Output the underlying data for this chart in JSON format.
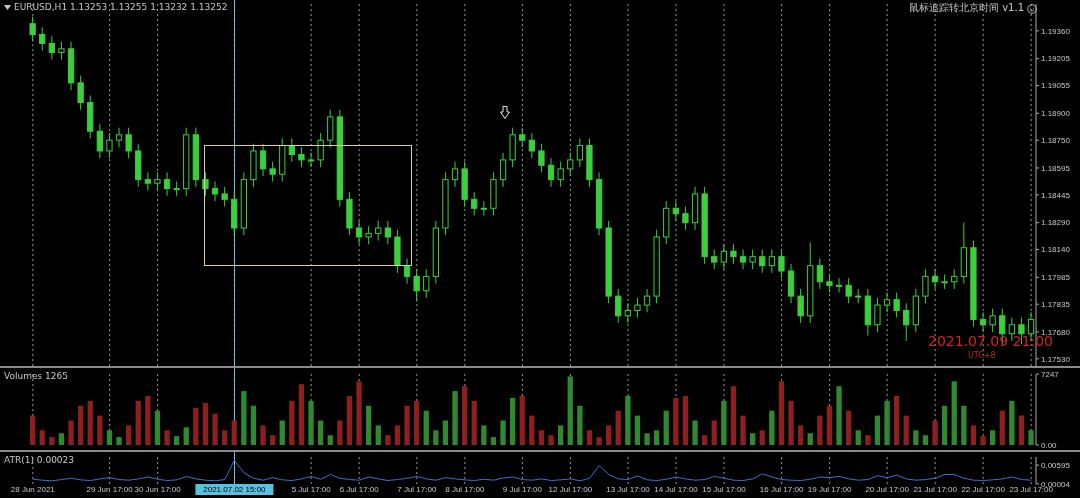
{
  "chart_data": [
    {
      "type": "candlestick",
      "title": "EURUSD,H1  1.13253 1.13255 1.13232 1.13252",
      "color": "#3ccf3c",
      "grid": "x",
      "tick_labels": "y",
      "annotations": [
        "鼠标追踪转北京时间 v1.1",
        "2021.07.09 21:00",
        "UTC+8"
      ],
      "categories": [
        "28 Jun 2021",
        null,
        null,
        null,
        null,
        null,
        null,
        null,
        "29 Jun 17:00",
        null,
        null,
        null,
        null,
        "30 Jun 17:00",
        null,
        null,
        null,
        null,
        null,
        null,
        null,
        "2021.07.02 15:00",
        null,
        null,
        null,
        null,
        null,
        null,
        null,
        "5 Jul 17:00",
        null,
        null,
        null,
        null,
        "6 Jul 17:00",
        null,
        null,
        null,
        null,
        null,
        "7 Jul 17:00",
        null,
        null,
        null,
        null,
        "8 Jul 17:00",
        null,
        null,
        null,
        null,
        null,
        "9 Jul 17:00",
        null,
        null,
        null,
        null,
        "12 Jul 17:00",
        null,
        null,
        null,
        null,
        null,
        "13 Jul 17:00",
        null,
        null,
        null,
        null,
        "14 Jul 17:00",
        null,
        null,
        null,
        null,
        "15 Jul 17:00",
        null,
        null,
        null,
        null,
        null,
        "16 Jul 17:00",
        null,
        null,
        null,
        null,
        "19 Jul 17:00",
        null,
        null,
        null,
        null,
        null,
        "20 Jul 17:00",
        null,
        null,
        null,
        null,
        "21 Jul 17:00",
        null,
        null,
        null,
        null,
        "22 Jul 17:00",
        null,
        null,
        null,
        null,
        "23 Jul 17:00"
      ],
      "ohlc": [
        [
          1.194,
          1.1944,
          1.193,
          1.1934
        ],
        [
          1.1934,
          1.1938,
          1.1925,
          1.1929
        ],
        [
          1.1929,
          1.1933,
          1.192,
          1.1924
        ],
        [
          1.1924,
          1.193,
          1.192,
          1.1926
        ],
        [
          1.1926,
          1.193,
          1.1903,
          1.1907
        ],
        [
          1.1907,
          1.1911,
          1.1892,
          1.1896
        ],
        [
          1.1896,
          1.19,
          1.1876,
          1.188
        ],
        [
          1.188,
          1.1884,
          1.1865,
          1.1869
        ],
        [
          1.1869,
          1.1879,
          1.1865,
          1.1875
        ],
        [
          1.1875,
          1.1882,
          1.1871,
          1.1878
        ],
        [
          1.1878,
          1.1882,
          1.1865,
          1.1869
        ],
        [
          1.1869,
          1.1873,
          1.1849,
          1.1853
        ],
        [
          1.1853,
          1.1857,
          1.1847,
          1.1851
        ],
        [
          1.1851,
          1.1857,
          1.1847,
          1.1853
        ],
        [
          1.1853,
          1.1857,
          1.1844,
          1.1848
        ],
        [
          1.1848,
          1.1852,
          1.1844,
          1.1848
        ],
        [
          1.1848,
          1.1882,
          1.1844,
          1.1878
        ],
        [
          1.1878,
          1.1882,
          1.1849,
          1.1853
        ],
        [
          1.1853,
          1.1857,
          1.1844,
          1.1848
        ],
        [
          1.1848,
          1.1852,
          1.1841,
          1.1845
        ],
        [
          1.1845,
          1.1849,
          1.1838,
          1.1842
        ],
        [
          1.1842,
          1.1846,
          1.1822,
          1.1826
        ],
        [
          1.1826,
          1.1857,
          1.1822,
          1.1853
        ],
        [
          1.1853,
          1.1873,
          1.1849,
          1.1869
        ],
        [
          1.1869,
          1.1873,
          1.1855,
          1.1859
        ],
        [
          1.1859,
          1.1863,
          1.1852,
          1.1856
        ],
        [
          1.1856,
          1.1876,
          1.1852,
          1.1872
        ],
        [
          1.1872,
          1.1876,
          1.1863,
          1.1867
        ],
        [
          1.1867,
          1.1871,
          1.186,
          1.1864
        ],
        [
          1.1864,
          1.1868,
          1.186,
          1.1864
        ],
        [
          1.1864,
          1.1879,
          1.186,
          1.1875
        ],
        [
          1.1875,
          1.1892,
          1.1871,
          1.1888
        ],
        [
          1.1888,
          1.1892,
          1.1838,
          1.1842
        ],
        [
          1.1842,
          1.1846,
          1.1822,
          1.1826
        ],
        [
          1.1826,
          1.183,
          1.1817,
          1.1821
        ],
        [
          1.1821,
          1.1827,
          1.1817,
          1.1823
        ],
        [
          1.1823,
          1.183,
          1.1819,
          1.1826
        ],
        [
          1.1826,
          1.183,
          1.1817,
          1.1821
        ],
        [
          1.1821,
          1.1825,
          1.1801,
          1.1805
        ],
        [
          1.1805,
          1.1809,
          1.1795,
          1.1799
        ],
        [
          1.1799,
          1.1803,
          1.1785,
          1.1791
        ],
        [
          1.1791,
          1.1803,
          1.1787,
          1.1799
        ],
        [
          1.1799,
          1.183,
          1.1795,
          1.1826
        ],
        [
          1.1826,
          1.1857,
          1.1822,
          1.1853
        ],
        [
          1.1853,
          1.1863,
          1.1849,
          1.1859
        ],
        [
          1.1859,
          1.1863,
          1.1838,
          1.1842
        ],
        [
          1.1842,
          1.1846,
          1.1833,
          1.1837
        ],
        [
          1.1837,
          1.1841,
          1.1833,
          1.1837
        ],
        [
          1.1837,
          1.1857,
          1.1833,
          1.1853
        ],
        [
          1.1853,
          1.1868,
          1.1849,
          1.1864
        ],
        [
          1.1864,
          1.1882,
          1.186,
          1.1878
        ],
        [
          1.1878,
          1.1882,
          1.1871,
          1.1875
        ],
        [
          1.1875,
          1.1879,
          1.1865,
          1.1869
        ],
        [
          1.1869,
          1.1873,
          1.1857,
          1.1861
        ],
        [
          1.1861,
          1.1865,
          1.1849,
          1.1853
        ],
        [
          1.1853,
          1.1863,
          1.1849,
          1.1859
        ],
        [
          1.1859,
          1.1868,
          1.1855,
          1.1864
        ],
        [
          1.1864,
          1.1876,
          1.186,
          1.1872
        ],
        [
          1.1872,
          1.1876,
          1.1849,
          1.1853
        ],
        [
          1.1853,
          1.1857,
          1.1822,
          1.1826
        ],
        [
          1.1826,
          1.183,
          1.1784,
          1.1788
        ],
        [
          1.1788,
          1.1792,
          1.1773,
          1.1777
        ],
        [
          1.1777,
          1.1784,
          1.1773,
          1.178
        ],
        [
          1.178,
          1.1787,
          1.1776,
          1.1783
        ],
        [
          1.1783,
          1.1792,
          1.1779,
          1.1788
        ],
        [
          1.1788,
          1.1825,
          1.1784,
          1.1821
        ],
        [
          1.1821,
          1.1841,
          1.1817,
          1.1837
        ],
        [
          1.1837,
          1.1841,
          1.183,
          1.1834
        ],
        [
          1.1834,
          1.1838,
          1.1825,
          1.1829
        ],
        [
          1.1829,
          1.1849,
          1.1825,
          1.1845
        ],
        [
          1.1845,
          1.1849,
          1.1806,
          1.181
        ],
        [
          1.181,
          1.1814,
          1.1803,
          1.1807
        ],
        [
          1.1807,
          1.1817,
          1.1803,
          1.1813
        ],
        [
          1.1813,
          1.1817,
          1.1806,
          1.181
        ],
        [
          1.181,
          1.1814,
          1.1803,
          1.1807
        ],
        [
          1.1807,
          1.1814,
          1.1803,
          1.181
        ],
        [
          1.181,
          1.1814,
          1.1801,
          1.1805
        ],
        [
          1.1805,
          1.1814,
          1.1801,
          1.181
        ],
        [
          1.181,
          1.1814,
          1.1798,
          1.1802
        ],
        [
          1.1802,
          1.1806,
          1.1784,
          1.1788
        ],
        [
          1.1788,
          1.1792,
          1.1773,
          1.1777
        ],
        [
          1.1777,
          1.1818,
          1.1773,
          1.1805
        ],
        [
          1.1805,
          1.1809,
          1.1792,
          1.1796
        ],
        [
          1.1796,
          1.18,
          1.179,
          1.1794
        ],
        [
          1.1794,
          1.1798,
          1.179,
          1.1794
        ],
        [
          1.1794,
          1.1798,
          1.1784,
          1.1788
        ],
        [
          1.1788,
          1.1792,
          1.1784,
          1.1788
        ],
        [
          1.1788,
          1.1792,
          1.1766,
          1.1772
        ],
        [
          1.1772,
          1.1787,
          1.1768,
          1.1783
        ],
        [
          1.1783,
          1.179,
          1.1779,
          1.1786
        ],
        [
          1.1786,
          1.179,
          1.1776,
          1.178
        ],
        [
          1.178,
          1.1784,
          1.1763,
          1.1772
        ],
        [
          1.1772,
          1.1792,
          1.1768,
          1.1788
        ],
        [
          1.1788,
          1.1803,
          1.1784,
          1.1799
        ],
        [
          1.1799,
          1.1803,
          1.1792,
          1.1796
        ],
        [
          1.1796,
          1.18,
          1.1792,
          1.1796
        ],
        [
          1.1796,
          1.1803,
          1.1792,
          1.1799
        ],
        [
          1.1799,
          1.1829,
          1.1795,
          1.1815
        ],
        [
          1.1815,
          1.1819,
          1.1771,
          1.1775
        ],
        [
          1.1775,
          1.1779,
          1.1768,
          1.1772
        ],
        [
          1.1772,
          1.1781,
          1.1768,
          1.1777
        ],
        [
          1.1777,
          1.1781,
          1.1761,
          1.1767
        ],
        [
          1.1767,
          1.1776,
          1.1763,
          1.1772
        ],
        [
          1.1772,
          1.1776,
          1.1761,
          1.1767
        ],
        [
          1.1767,
          1.1779,
          1.1763,
          1.1775
        ]
      ],
      "ylim": [
        1.1749,
        1.1951
      ],
      "yticks": [
        {
          "value": 1.1936,
          "label": "1.19360"
        },
        1.19205,
        1.19055,
        {
          "value": 1.189,
          "label": "1.18900"
        },
        {
          "value": 1.1875,
          "label": "1.18750"
        },
        1.18595,
        1.18445,
        {
          "value": 1.1829,
          "label": "1.18290"
        },
        {
          "value": 1.1814,
          "label": "1.18140"
        },
        1.17985,
        1.17835,
        {
          "value": 1.1768,
          "label": "1.17680"
        },
        {
          "value": 1.1753,
          "label": "1.17530"
        }
      ],
      "ref_lines": [
        {
          "axis": "x",
          "value": "2021.07.02 15:00",
          "color": "#5bc0de"
        }
      ]
    },
    {
      "type": "bar",
      "title": "Volumes 1265",
      "grid": "x",
      "tick_labels": "y",
      "categories": [
        "28 Jun 2021",
        null,
        null,
        null,
        null,
        null,
        null,
        null,
        "29 Jun 17:00",
        null,
        null,
        null,
        null,
        "30 Jun 17:00",
        null,
        null,
        null,
        null,
        null,
        null,
        null,
        "2021.07.02 15:00",
        null,
        null,
        null,
        null,
        null,
        null,
        null,
        "5 Jul 17:00",
        null,
        null,
        null,
        null,
        "6 Jul 17:00",
        null,
        null,
        null,
        null,
        null,
        "7 Jul 17:00",
        null,
        null,
        null,
        null,
        "8 Jul 17:00",
        null,
        null,
        null,
        null,
        null,
        "9 Jul 17:00",
        null,
        null,
        null,
        null,
        "12 Jul 17:00",
        null,
        null,
        null,
        null,
        null,
        "13 Jul 17:00",
        null,
        null,
        null,
        null,
        "14 Jul 17:00",
        null,
        null,
        null,
        null,
        "15 Jul 17:00",
        null,
        null,
        null,
        null,
        null,
        "16 Jul 17:00",
        null,
        null,
        null,
        null,
        "19 Jul 17:00",
        null,
        null,
        null,
        null,
        null,
        "20 Jul 17:00",
        null,
        null,
        null,
        null,
        "21 Jul 17:00",
        null,
        null,
        null,
        null,
        "22 Jul 17:00",
        null,
        null,
        null,
        null,
        "23 Jul 17:00"
      ],
      "values": [
        3000,
        1500,
        800,
        1200,
        2500,
        4000,
        4500,
        3000,
        1500,
        800,
        2000,
        4500,
        5000,
        3500,
        1500,
        900,
        1800,
        3800,
        4300,
        3200,
        1500,
        2500,
        5500,
        4000,
        2000,
        1000,
        2500,
        4500,
        6200,
        4500,
        2500,
        1000,
        2500,
        5000,
        6500,
        4000,
        2000,
        1000,
        2000,
        4000,
        4500,
        3500,
        1500,
        2500,
        5500,
        6000,
        4500,
        2000,
        800,
        2500,
        4800,
        5000,
        3000,
        1500,
        1000,
        2000,
        7000,
        4000,
        1500,
        800,
        2000,
        3500,
        5000,
        3000,
        1200,
        1500,
        3500,
        4800,
        5000,
        2500,
        1000,
        2500,
        4500,
        6000,
        3000,
        1200,
        1500,
        3500,
        6500,
        4500,
        2000,
        1200,
        3000,
        4000,
        6000,
        3500,
        1500,
        1000,
        3000,
        4500,
        5000,
        3000,
        1500,
        1000,
        2500,
        4000,
        6500,
        4000,
        2000,
        900,
        1500,
        3500,
        4500,
        3000,
        1500
      ],
      "colors": [
        "#8e1f1f",
        "#8e1f1f",
        "#8e1f1f",
        "#2f8a2f",
        "#8e1f1f",
        "#8e1f1f",
        "#8e1f1f",
        "#8e1f1f",
        "#2f8a2f",
        "#2f8a2f",
        "#8e1f1f",
        "#8e1f1f",
        "#8e1f1f",
        "#2f8a2f",
        "#8e1f1f",
        "#2f8a2f",
        "#2f8a2f",
        "#8e1f1f",
        "#8e1f1f",
        "#8e1f1f",
        "#8e1f1f",
        "#8e1f1f",
        "#2f8a2f",
        "#2f8a2f",
        "#8e1f1f",
        "#8e1f1f",
        "#2f8a2f",
        "#8e1f1f",
        "#8e1f1f",
        "#2f8a2f",
        "#2f8a2f",
        "#2f8a2f",
        "#8e1f1f",
        "#8e1f1f",
        "#8e1f1f",
        "#2f8a2f",
        "#2f8a2f",
        "#8e1f1f",
        "#8e1f1f",
        "#8e1f1f",
        "#8e1f1f",
        "#2f8a2f",
        "#2f8a2f",
        "#2f8a2f",
        "#2f8a2f",
        "#8e1f1f",
        "#8e1f1f",
        "#2f8a2f",
        "#2f8a2f",
        "#2f8a2f",
        "#2f8a2f",
        "#8e1f1f",
        "#8e1f1f",
        "#8e1f1f",
        "#8e1f1f",
        "#2f8a2f",
        "#2f8a2f",
        "#2f8a2f",
        "#8e1f1f",
        "#8e1f1f",
        "#8e1f1f",
        "#8e1f1f",
        "#2f8a2f",
        "#2f8a2f",
        "#2f8a2f",
        "#2f8a2f",
        "#2f8a2f",
        "#8e1f1f",
        "#8e1f1f",
        "#2f8a2f",
        "#8e1f1f",
        "#8e1f1f",
        "#2f8a2f",
        "#8e1f1f",
        "#8e1f1f",
        "#2f8a2f",
        "#8e1f1f",
        "#2f8a2f",
        "#8e1f1f",
        "#8e1f1f",
        "#8e1f1f",
        "#2f8a2f",
        "#8e1f1f",
        "#8e1f1f",
        "#2f8a2f",
        "#8e1f1f",
        "#2f8a2f",
        "#8e1f1f",
        "#2f8a2f",
        "#2f8a2f",
        "#8e1f1f",
        "#8e1f1f",
        "#2f8a2f",
        "#2f8a2f",
        "#8e1f1f",
        "#2f8a2f",
        "#2f8a2f",
        "#2f8a2f",
        "#8e1f1f",
        "#8e1f1f",
        "#2f8a2f",
        "#8e1f1f",
        "#2f8a2f",
        "#8e1f1f",
        "#2f8a2f"
      ],
      "ylim": [
        0,
        7247
      ],
      "yticks": [
        {
          "value": 0,
          "label": "0.00"
        },
        7247
      ],
      "ref_lines": [
        {
          "axis": "x",
          "value": "2021.07.02 15:00",
          "color": "#5bc0de"
        }
      ]
    },
    {
      "type": "line",
      "title": "ATR(1) 0.00023",
      "grid": "x",
      "color": "#3e6fd1",
      "categories": [
        "28 Jun 2021",
        null,
        null,
        null,
        null,
        null,
        null,
        null,
        "29 Jun 17:00",
        null,
        null,
        null,
        null,
        "30 Jun 17:00",
        null,
        null,
        null,
        null,
        null,
        null,
        null,
        "2021.07.02 15:00",
        null,
        null,
        null,
        null,
        null,
        null,
        null,
        "5 Jul 17:00",
        null,
        null,
        null,
        null,
        "6 Jul 17:00",
        null,
        null,
        null,
        null,
        null,
        "7 Jul 17:00",
        null,
        null,
        null,
        null,
        "8 Jul 17:00",
        null,
        null,
        null,
        null,
        null,
        "9 Jul 17:00",
        null,
        null,
        null,
        null,
        "12 Jul 17:00",
        null,
        null,
        null,
        null,
        null,
        "13 Jul 17:00",
        null,
        null,
        null,
        null,
        "14 Jul 17:00",
        null,
        null,
        null,
        null,
        "15 Jul 17:00",
        null,
        null,
        null,
        null,
        null,
        "16 Jul 17:00",
        null,
        null,
        null,
        null,
        "19 Jul 17:00",
        null,
        null,
        null,
        null,
        null,
        "20 Jul 17:00",
        null,
        null,
        null,
        null,
        "21 Jul 17:00",
        null,
        null,
        null,
        null,
        "22 Jul 17:00",
        null,
        null,
        null,
        null,
        "23 Jul 17:00"
      ],
      "values": [
        0.0015,
        0.0012,
        0.001,
        0.0014,
        0.0018,
        0.0013,
        0.0011,
        0.0016,
        0.002,
        0.0014,
        0.0012,
        0.0016,
        0.0022,
        0.0015,
        0.0011,
        0.0013,
        0.0024,
        0.0016,
        0.0012,
        0.001,
        0.0014,
        0.0075,
        0.0035,
        0.0018,
        0.0012,
        0.002,
        0.0013,
        0.0011,
        0.0016,
        0.0024,
        0.0015,
        0.003,
        0.0018,
        0.0014,
        0.0012,
        0.0022,
        0.0016,
        0.0011,
        0.0014,
        0.0018,
        0.0024,
        0.0016,
        0.0012,
        0.002,
        0.0016,
        0.0013,
        0.0011,
        0.0015,
        0.0012,
        0.0019,
        0.0022,
        0.0014,
        0.0012,
        0.0016,
        0.0011,
        0.0013,
        0.0016,
        0.001,
        0.0018,
        0.0058,
        0.003,
        0.0016,
        0.0014,
        0.0025,
        0.0013,
        0.0011,
        0.0015,
        0.0022,
        0.0016,
        0.0012,
        0.0014,
        0.0024,
        0.0018,
        0.0012,
        0.0011,
        0.0016,
        0.0032,
        0.0022,
        0.0014,
        0.0012,
        0.0011,
        0.0015,
        0.0022,
        0.002,
        0.0024,
        0.0016,
        0.0012,
        0.0014,
        0.0026,
        0.002,
        0.0028,
        0.0016,
        0.0012,
        0.0014,
        0.0018,
        0.003,
        0.003,
        0.0018,
        0.0012,
        0.0011,
        0.0013,
        0.0016,
        0.0022,
        0.0014,
        0.0012
      ],
      "ylim": [
        0,
        0.0085
      ],
      "yticks": [
        {
          "value": 4e-05,
          "label": "0.00004"
        },
        0.00595
      ],
      "ref_lines": [
        {
          "axis": "x",
          "value": "2021.07.02 15:00",
          "color": "#5bc0de"
        }
      ]
    }
  ]
}
